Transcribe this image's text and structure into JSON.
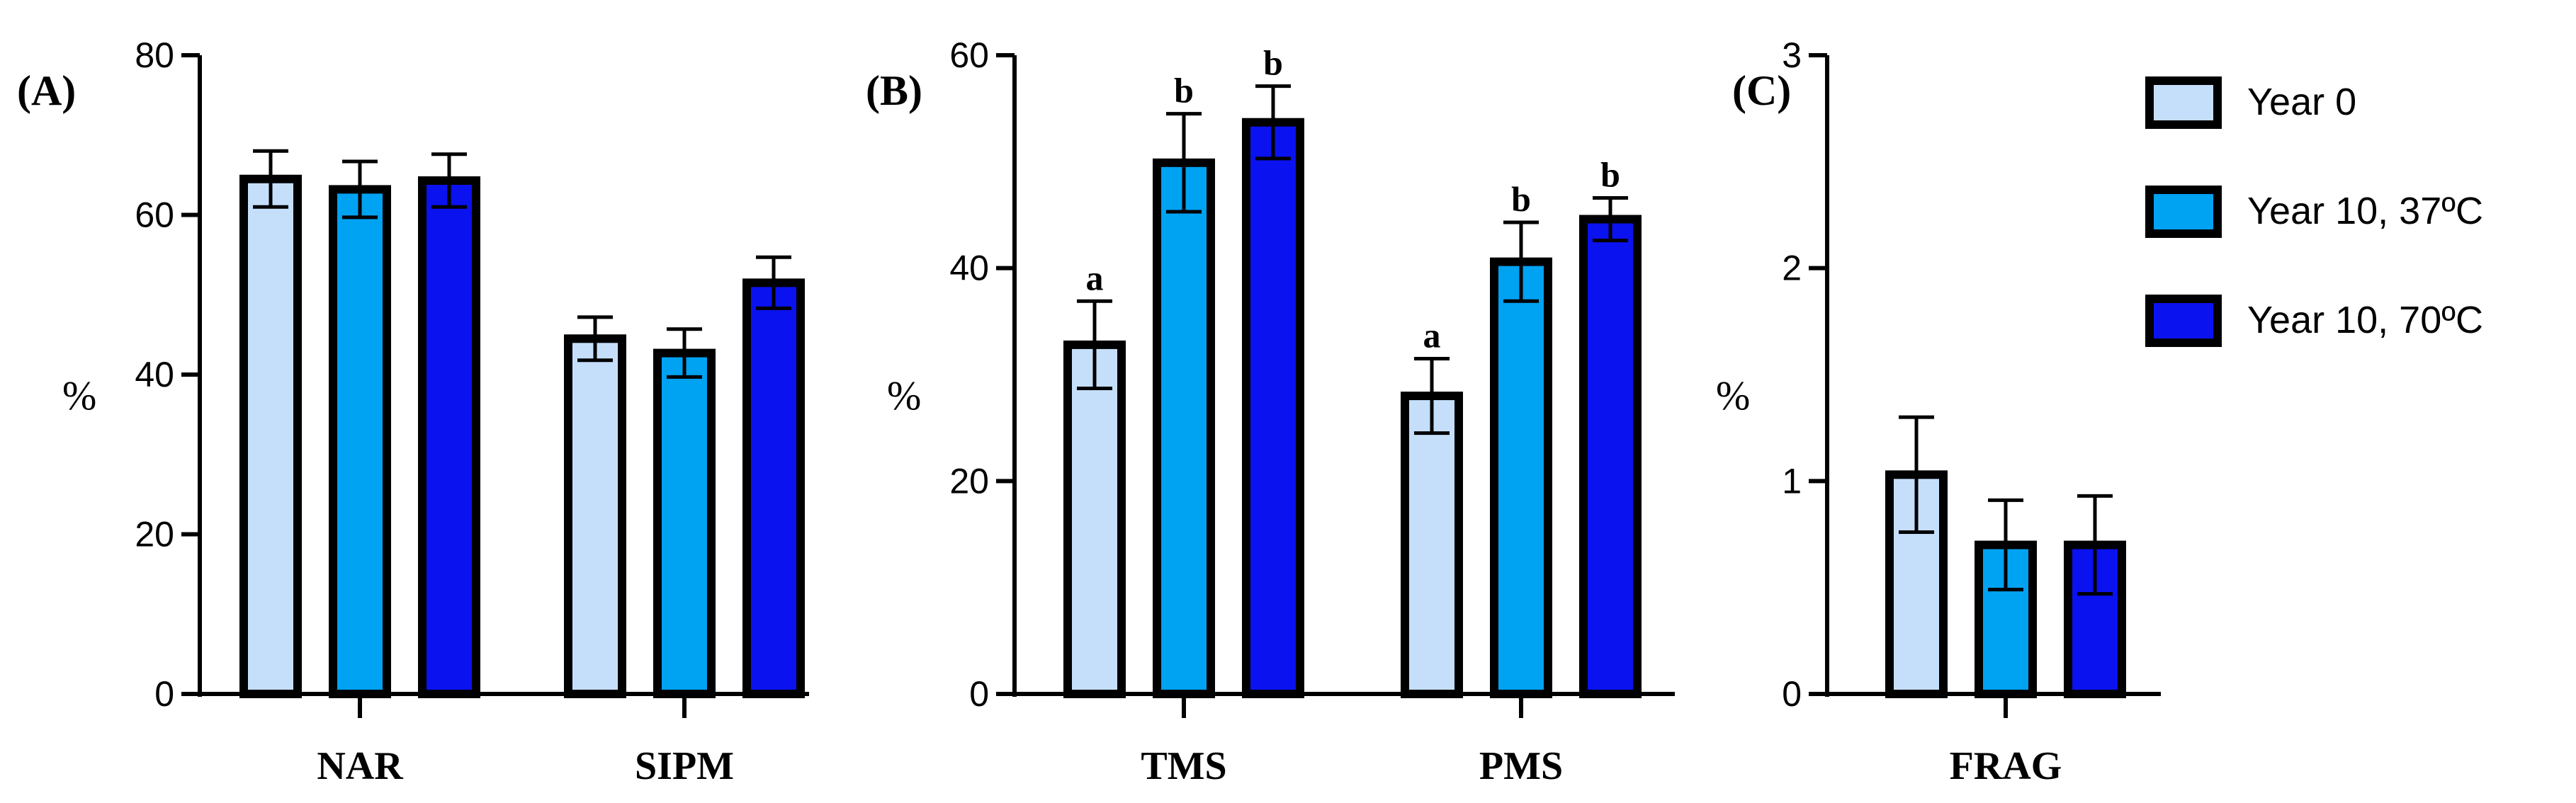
{
  "chart_data": [
    {
      "type": "bar",
      "panel_label": "(A)",
      "ylabel": "%",
      "ylim": [
        0,
        80
      ],
      "yticks": [
        0,
        20,
        40,
        60,
        80
      ],
      "categories": [
        "NAR",
        "SIPM"
      ],
      "series": [
        {
          "name": "Year 0",
          "values": [
            64.5,
            44.5
          ],
          "errors": [
            3.5,
            2.7
          ]
        },
        {
          "name": "Year 10, 37ºC",
          "values": [
            63.2,
            42.7
          ],
          "errors": [
            3.5,
            3.0
          ]
        },
        {
          "name": "Year 10, 70ºC",
          "values": [
            64.3,
            51.5
          ],
          "errors": [
            3.3,
            3.2
          ]
        }
      ],
      "significance": []
    },
    {
      "type": "bar",
      "panel_label": "(B)",
      "ylabel": "%",
      "ylim": [
        0,
        60
      ],
      "yticks": [
        0,
        20,
        40,
        60
      ],
      "categories": [
        "TMS",
        "PMS"
      ],
      "series": [
        {
          "name": "Year 0",
          "values": [
            32.8,
            28.0
          ],
          "errors": [
            4.1,
            3.5
          ]
        },
        {
          "name": "Year 10, 37ºC",
          "values": [
            49.9,
            40.6
          ],
          "errors": [
            4.6,
            3.7
          ]
        },
        {
          "name": "Year 10, 70ºC",
          "values": [
            53.7,
            44.6
          ],
          "errors": [
            3.4,
            2.0
          ]
        }
      ],
      "significance": [
        [
          "a",
          "a"
        ],
        [
          "b",
          "b"
        ],
        [
          "b",
          "b"
        ]
      ]
    },
    {
      "type": "bar",
      "panel_label": "(C)",
      "ylabel": "%",
      "ylim": [
        0,
        3
      ],
      "yticks": [
        0,
        1,
        2,
        3
      ],
      "categories": [
        "FRAG"
      ],
      "series": [
        {
          "name": "Year 0",
          "values": [
            1.03
          ],
          "errors": [
            0.27
          ]
        },
        {
          "name": "Year 10, 37ºC",
          "values": [
            0.7
          ],
          "errors": [
            0.21
          ]
        },
        {
          "name": "Year 10, 70ºC",
          "values": [
            0.7
          ],
          "errors": [
            0.23
          ]
        }
      ],
      "significance": []
    }
  ],
  "legend": {
    "placement": "top-right",
    "items": [
      {
        "label": "Year 0",
        "color": "#c5dffa"
      },
      {
        "label": "Year 10, 37ºC",
        "color": "#00a2f2"
      },
      {
        "label": "Year 10, 70ºC",
        "color": "#0a12f0"
      }
    ]
  }
}
